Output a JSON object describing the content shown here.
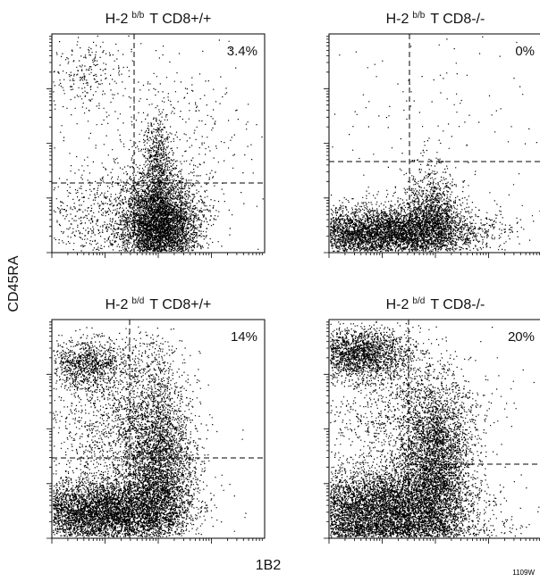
{
  "panels": [
    {
      "title_prefix": "H-2",
      "title_sup": "b/b",
      "title_suffix": "T  CD8+/+",
      "percent": "3.4%"
    },
    {
      "title_prefix": "H-2",
      "title_sup": "b/b",
      "title_suffix": "T  CD8-/-",
      "percent": "0%"
    },
    {
      "title_prefix": "H-2",
      "title_sup": "b/d",
      "title_suffix": "T  CD8+/+",
      "percent": "14%"
    },
    {
      "title_prefix": "H-2",
      "title_sup": "b/d",
      "title_suffix": "T  CD8-/-",
      "percent": "20%"
    }
  ],
  "y_label": "CD45RA",
  "x_label": "1B2",
  "figure_code": "1109W"
}
